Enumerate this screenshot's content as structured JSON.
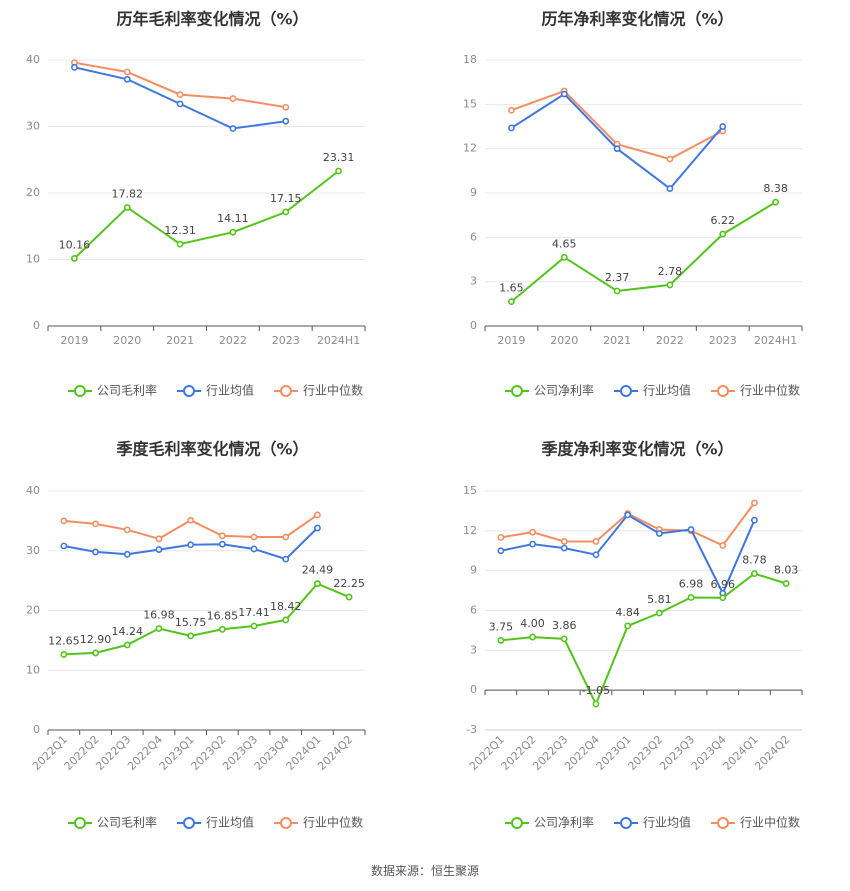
{
  "source": "数据来源：恒生聚源",
  "colors": {
    "company": "#52c41a",
    "avg": "#3f77e0",
    "median": "#f58d62"
  },
  "chart_data": [
    {
      "type": "line",
      "title": "历年毛利率变化情况（%）",
      "categories": [
        "2019",
        "2020",
        "2021",
        "2022",
        "2023",
        "2024H1"
      ],
      "ylim": [
        0,
        40
      ],
      "yticks": [
        0,
        10,
        20,
        30,
        40
      ],
      "legend": "bottom",
      "series": [
        {
          "name": "公司毛利率",
          "key": "company",
          "values": [
            10.16,
            17.82,
            12.31,
            14.11,
            17.15,
            23.31
          ],
          "labels": [
            "10.16",
            "17.82",
            "12.31",
            "14.11",
            "17.15",
            "23.31"
          ]
        },
        {
          "name": "行业均值",
          "key": "avg",
          "values": [
            38.9,
            37.1,
            33.4,
            29.7,
            30.8,
            null
          ]
        },
        {
          "name": "行业中位数",
          "key": "median",
          "values": [
            39.6,
            38.2,
            34.8,
            34.2,
            32.9,
            null
          ]
        }
      ]
    },
    {
      "type": "line",
      "title": "历年净利率变化情况（%）",
      "categories": [
        "2019",
        "2020",
        "2021",
        "2022",
        "2023",
        "2024H1"
      ],
      "ylim": [
        0,
        18
      ],
      "yticks": [
        0,
        3,
        6,
        9,
        12,
        15,
        18
      ],
      "legend": "bottom",
      "series": [
        {
          "name": "公司净利率",
          "key": "company",
          "values": [
            1.65,
            4.65,
            2.37,
            2.78,
            6.22,
            8.38
          ],
          "labels": [
            "1.65",
            "4.65",
            "2.37",
            "2.78",
            "6.22",
            "8.38"
          ]
        },
        {
          "name": "行业均值",
          "key": "avg",
          "values": [
            13.4,
            15.7,
            12.0,
            9.3,
            13.5,
            null
          ]
        },
        {
          "name": "行业中位数",
          "key": "median",
          "values": [
            14.6,
            15.9,
            12.3,
            11.3,
            13.2,
            null
          ]
        }
      ]
    },
    {
      "type": "line",
      "title": "季度毛利率变化情况（%）",
      "categories": [
        "2022Q1",
        "2022Q2",
        "2022Q3",
        "2022Q4",
        "2023Q1",
        "2023Q2",
        "2023Q3",
        "2023Q4",
        "2024Q1",
        "2024Q2"
      ],
      "ylim": [
        0,
        40
      ],
      "yticks": [
        0,
        10,
        20,
        30,
        40
      ],
      "rotate_x": true,
      "legend": "bottom",
      "series": [
        {
          "name": "公司毛利率",
          "key": "company",
          "values": [
            12.65,
            12.9,
            14.24,
            16.98,
            15.75,
            16.85,
            17.41,
            18.42,
            24.49,
            22.25
          ],
          "labels": [
            "12.65",
            "12.90",
            "14.24",
            "16.98",
            "15.75",
            "16.85",
            "17.41",
            "18.42",
            "24.49",
            "22.25"
          ]
        },
        {
          "name": "行业均值",
          "key": "avg",
          "values": [
            30.8,
            29.8,
            29.4,
            30.2,
            31.0,
            31.1,
            30.3,
            28.6,
            33.8,
            null
          ]
        },
        {
          "name": "行业中位数",
          "key": "median",
          "values": [
            35.0,
            34.5,
            33.5,
            32.0,
            35.1,
            32.5,
            32.3,
            32.3,
            36.0,
            null
          ]
        }
      ]
    },
    {
      "type": "line",
      "title": "季度净利率变化情况（%）",
      "categories": [
        "2022Q1",
        "2022Q2",
        "2022Q3",
        "2022Q4",
        "2023Q1",
        "2023Q2",
        "2023Q3",
        "2023Q4",
        "2024Q1",
        "2024Q2"
      ],
      "ylim": [
        -3,
        15
      ],
      "yticks": [
        -3,
        0,
        3,
        6,
        9,
        12,
        15
      ],
      "rotate_x": true,
      "legend": "bottom",
      "series": [
        {
          "name": "公司净利率",
          "key": "company",
          "values": [
            3.75,
            4.0,
            3.86,
            -1.05,
            4.84,
            5.81,
            6.98,
            6.96,
            8.78,
            8.03
          ],
          "labels": [
            "3.75",
            "4.00",
            "3.86",
            "-1.05",
            "4.84",
            "5.81",
            "6.98",
            "6.96",
            "8.78",
            "8.03"
          ]
        },
        {
          "name": "行业均值",
          "key": "avg",
          "values": [
            10.5,
            11.0,
            10.7,
            10.2,
            13.2,
            11.8,
            12.1,
            7.3,
            12.8,
            null
          ]
        },
        {
          "name": "行业中位数",
          "key": "median",
          "values": [
            11.5,
            11.9,
            11.2,
            11.2,
            13.3,
            12.1,
            12.0,
            10.9,
            14.1,
            null
          ]
        }
      ]
    }
  ]
}
